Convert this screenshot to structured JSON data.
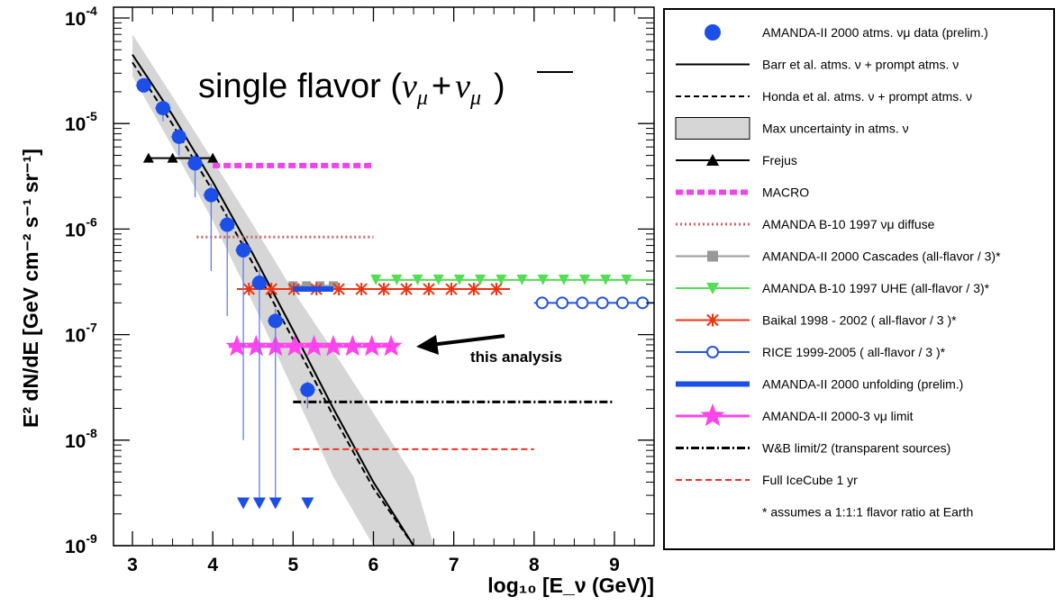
{
  "chart_data": {
    "type": "scatter",
    "ylabel": "E² dN/dE [GeV cm⁻² s⁻¹ sr⁻¹]",
    "xlabel": "log₁₀ [E_ν (GeV)]",
    "xlim": [
      2.75,
      9.5
    ],
    "ylim": [
      1e-09,
      0.0001
    ],
    "y_scale": "log",
    "x_ticks": [
      "3",
      "4",
      "5",
      "6",
      "7",
      "8",
      "9"
    ],
    "y_ticks": [
      {
        "base": "10",
        "exp": "-9"
      },
      {
        "base": "10",
        "exp": "-8"
      },
      {
        "base": "10",
        "exp": "-7"
      },
      {
        "base": "10",
        "exp": "-6"
      },
      {
        "base": "10",
        "exp": "-5"
      },
      {
        "base": "10",
        "exp": "-4"
      }
    ],
    "legend_position": "right",
    "annotations": {
      "main_prefix": "single flavor (",
      "nu": "ν",
      "mu": "μ",
      "plus": "+",
      "main_suffix": ")",
      "arrow_label": "this analysis"
    },
    "legend": [
      {
        "label": "AMANDA-II 2000 atms. νμ data (prelim.)",
        "color": "#1c4fe8",
        "style": "dot"
      },
      {
        "label": "Barr et al. atms. ν + prompt atms. ν",
        "color": "#000000",
        "style": "line"
      },
      {
        "label": "Honda et al. atms. ν + prompt atms. ν",
        "color": "#000000",
        "style": "dash"
      },
      {
        "label": "Max uncertainty in atms. ν",
        "color": "#d6d6d6",
        "style": "box"
      },
      {
        "label": "Frejus",
        "color": "#000000",
        "style": "triangle"
      },
      {
        "label": "MACRO",
        "color": "#ee44ee",
        "style": "thickdash"
      },
      {
        "label": "AMANDA B-10 1997 νμ diffuse",
        "color": "#cc6666",
        "style": "dots"
      },
      {
        "label": "AMANDA-II 2000 Cascades (all-flavor / 3)*",
        "color": "#999999",
        "style": "square"
      },
      {
        "label": "AMANDA B-10 1997 UHE (all-flavor / 3)*",
        "color": "#55dd55",
        "style": "invtriangle"
      },
      {
        "label": "Baikal 1998 - 2002 ( all-flavor / 3 )*",
        "color": "#ee3311",
        "style": "star"
      },
      {
        "label": "RICE 1999-2005 ( all-flavor / 3 )*",
        "color": "#2255dd",
        "style": "circle"
      },
      {
        "label": "AMANDA-II 2000 unfolding (prelim.)",
        "color": "#1c4fe8",
        "style": "thick"
      },
      {
        "label": "AMANDA-II 2000-3 νμ limit",
        "color": "#ff44ee",
        "style": "bigstar"
      },
      {
        "label": "W&B limit/2 (transparent sources)",
        "color": "#000000",
        "style": "dashdot"
      },
      {
        "label": "Full IceCube 1 yr",
        "color": "#ee3322",
        "style": "reddash"
      },
      {
        "label": "* assumes a 1:1:1 flavor ratio at Earth",
        "color": "#000000",
        "style": "none"
      }
    ],
    "series": [
      {
        "name": "AMANDA-II 2000 atms. νμ data (prelim.)",
        "color": "#1c4fe8",
        "x": [
          3.14,
          3.38,
          3.58,
          3.78,
          3.98,
          4.18,
          4.38,
          4.58,
          4.78,
          5.18
        ],
        "y": [
          2.3e-05,
          1.4e-05,
          7.5e-06,
          4.2e-06,
          2.1e-06,
          1.1e-06,
          6.3e-07,
          3.1e-07,
          1.35e-07,
          3e-08
        ],
        "y_err_low": [
          1.5e-06,
          3.5e-06,
          2.5e-06,
          2.2e-06,
          1.7e-06,
          9.5e-07,
          6.2e-07,
          3.1e-07,
          1.35e-07,
          1e-08
        ],
        "y_err_high": [
          2e-06,
          2e-06,
          1.5e-06,
          1e-06,
          6e-07,
          3e-07,
          2e-07,
          1e-07,
          4e-08,
          6e-09
        ],
        "x_err": 0.1,
        "upper_limit_x": [
          4.38,
          4.58,
          4.78,
          5.18
        ],
        "upper_limit_y": 2.4e-09
      },
      {
        "name": "Barr et al. atms. ν + prompt atms. ν",
        "color": "#000000",
        "x": [
          3.0,
          3.5,
          4.0,
          4.5,
          5.0,
          5.5,
          6.0,
          6.5
        ],
        "y": [
          4.5e-05,
          1.2e-05,
          2.8e-06,
          5.8e-07,
          1.1e-07,
          2e-08,
          4e-09,
          1e-09
        ]
      },
      {
        "name": "Honda et al. atms. ν + prompt atms. ν",
        "color": "#000000",
        "x": [
          3.0,
          3.5,
          4.0,
          4.5,
          5.0,
          5.5,
          6.0,
          6.5
        ],
        "y": [
          3.8e-05,
          9.8e-06,
          2.3e-06,
          4.7e-07,
          9e-08,
          1.7e-08,
          3.5e-09,
          1e-09
        ]
      },
      {
        "name": "Max uncertainty in atms. ν",
        "color": "#d6d6d6",
        "x": [
          3.0,
          3.5,
          4.0,
          4.5,
          5.0,
          5.5,
          6.0,
          6.5,
          6.75
        ],
        "y_high": [
          7e-05,
          1.8e-05,
          4.5e-06,
          1.1e-06,
          2.6e-07,
          7e-08,
          1.8e-08,
          4.5e-09,
          1e-09
        ],
        "y_low": [
          2.8e-05,
          6e-06,
          1.2e-06,
          2e-07,
          3e-08,
          4.5e-09,
          1e-09,
          1e-09,
          1e-09
        ]
      },
      {
        "name": "Frejus",
        "color": "#000000",
        "x": [
          3.2,
          3.5,
          3.8,
          4.0
        ],
        "y": [
          4.7e-06,
          4.7e-06,
          4.7e-06,
          4.7e-06
        ]
      },
      {
        "name": "MACRO",
        "color": "#ee44ee",
        "x": [
          4.0,
          6.0
        ],
        "y": [
          4e-06,
          4e-06
        ]
      },
      {
        "name": "AMANDA B-10 1997 νμ diffuse",
        "color": "#cc6666",
        "x": [
          3.8,
          6.0
        ],
        "y": [
          8.4e-07,
          8.4e-07
        ]
      },
      {
        "name": "AMANDA-II 2000 Cascades (all-flavor / 3)*",
        "color": "#999999",
        "x": [
          5.0,
          5.5
        ],
        "y": [
          2.9e-07,
          2.9e-07
        ]
      },
      {
        "name": "AMANDA B-10 1997 UHE (all-flavor / 3)*",
        "color": "#55dd55",
        "x": [
          6.0,
          9.5
        ],
        "y": [
          3.3e-07,
          3.3e-07
        ]
      },
      {
        "name": "Baikal 1998 - 2002 ( all-flavor / 3 )*",
        "color": "#ee3311",
        "x": [
          4.3,
          7.7
        ],
        "y": [
          2.7e-07,
          2.7e-07
        ]
      },
      {
        "name": "RICE 1999-2005 ( all-flavor / 3 )*",
        "color": "#2255dd",
        "x": [
          8.0,
          9.5
        ],
        "y": [
          2e-07,
          2e-07
        ]
      },
      {
        "name": "AMANDA-II 2000 unfolding (prelim.)",
        "color": "#1c4fe8",
        "x": [
          5.0,
          5.5
        ],
        "y": [
          2.7e-07,
          2.7e-07
        ]
      },
      {
        "name": "AMANDA-II 2000-3 νμ limit",
        "color": "#ff44ee",
        "x": [
          4.2,
          6.3
        ],
        "y": [
          7.7e-08,
          7.7e-08
        ]
      },
      {
        "name": "W&B limit/2 (transparent sources)",
        "color": "#000000",
        "x": [
          5.0,
          9.0
        ],
        "y": [
          2.3e-08,
          2.3e-08
        ]
      },
      {
        "name": "Full IceCube 1 yr",
        "color": "#ee3322",
        "x": [
          5.0,
          8.0
        ],
        "y": [
          8.2e-09,
          8.2e-09
        ]
      }
    ]
  }
}
